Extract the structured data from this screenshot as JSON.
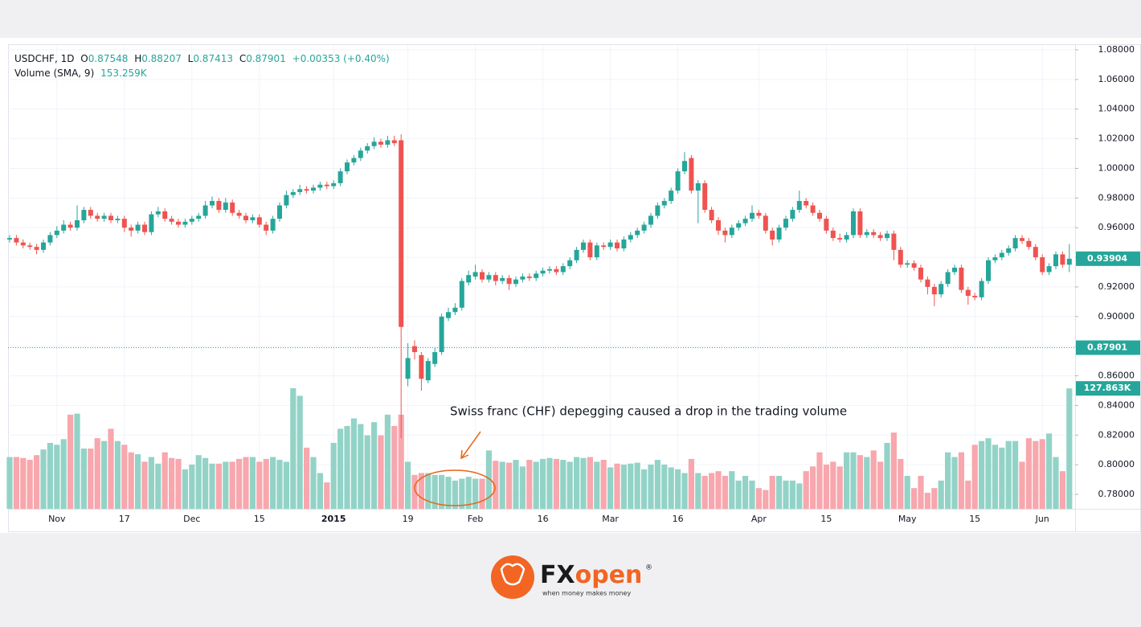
{
  "chart_data": {
    "type": "candlestick",
    "header": {
      "symbol": "USDCHF, 1D",
      "open": {
        "label": "O",
        "value": "0.87548"
      },
      "high": {
        "label": "H",
        "value": "0.88207"
      },
      "low": {
        "label": "L",
        "value": "0.87413"
      },
      "close": {
        "label": "C",
        "value": "0.87901"
      },
      "change": "+0.00353 (+0.40%)",
      "volume_indicator": "Volume (SMA, 9)",
      "volume_value": "153.259K"
    },
    "annotation": "Swiss franc (CHF) depegging caused a drop in the trading volume",
    "logo": {
      "name_dark": "FX",
      "name_accent": "open",
      "registered": "®",
      "tagline": "when money makes money"
    },
    "up_color": "#26a69a",
    "down_color": "#ef5350",
    "volume_up_color": "#93d3c7",
    "volume_down_color": "#f7a7ad",
    "annotation_color": "#e8661a",
    "ylim": [
      0.78,
      1.08
    ],
    "yticks": [
      {
        "value": 1.08,
        "label": "1.08000"
      },
      {
        "value": 1.06,
        "label": "1.06000"
      },
      {
        "value": 1.04,
        "label": "1.04000"
      },
      {
        "value": 1.02,
        "label": "1.02000"
      },
      {
        "value": 1.0,
        "label": "1.00000"
      },
      {
        "value": 0.98,
        "label": "0.98000"
      },
      {
        "value": 0.96,
        "label": "0.96000"
      },
      {
        "value": 0.94,
        "label": "0.94000"
      },
      {
        "value": 0.92,
        "label": "0.92000"
      },
      {
        "value": 0.9,
        "label": "0.90000"
      },
      {
        "value": 0.88,
        "label": "0.88000"
      },
      {
        "value": 0.86,
        "label": "0.86000"
      },
      {
        "value": 0.84,
        "label": "0.84000"
      },
      {
        "value": 0.82,
        "label": "0.82000"
      },
      {
        "value": 0.8,
        "label": "0.80000"
      },
      {
        "value": 0.78,
        "label": "0.78000"
      }
    ],
    "grid": true,
    "crosshair_price": 0.93904,
    "last_price": 0.87901,
    "volume_label": "127.863K",
    "categories": [
      null,
      null,
      null,
      null,
      null,
      null,
      null,
      "Nov",
      null,
      null,
      null,
      null,
      null,
      null,
      null,
      null,
      null,
      "17",
      null,
      null,
      null,
      null,
      null,
      null,
      null,
      null,
      null,
      "Dec",
      null,
      null,
      null,
      null,
      null,
      null,
      null,
      null,
      null,
      "15",
      null,
      null,
      null,
      null,
      null,
      null,
      null,
      null,
      null,
      null,
      "2015",
      null,
      null,
      null,
      null,
      null,
      null,
      null,
      null,
      null,
      null,
      "19",
      null,
      null,
      null,
      null,
      null,
      null,
      null,
      null,
      null,
      "Feb",
      null,
      null,
      null,
      null,
      null,
      null,
      null,
      null,
      null,
      "16",
      null,
      null,
      null,
      null,
      null,
      null,
      null,
      null,
      null,
      "Mar",
      null,
      null,
      null,
      null,
      null,
      null,
      null,
      null,
      null,
      "16",
      null,
      null,
      null,
      null,
      null,
      null,
      null,
      null,
      null,
      null,
      null,
      "Apr",
      null,
      null,
      null,
      null,
      null,
      null,
      null,
      null,
      null,
      "15",
      null,
      null,
      null,
      null,
      null,
      null,
      null,
      null,
      null,
      null,
      null,
      "May",
      null,
      null,
      null,
      null,
      null,
      null,
      null,
      null,
      null,
      "15",
      null,
      null,
      null,
      null,
      null,
      null,
      null,
      null,
      null,
      "Jun",
      null,
      null,
      null,
      null
    ],
    "ohlc": [
      [
        0.952,
        0.955,
        0.95,
        0.953
      ],
      [
        0.953,
        0.955,
        0.948,
        0.95
      ],
      [
        0.95,
        0.952,
        0.946,
        0.948
      ],
      [
        0.948,
        0.95,
        0.945,
        0.947
      ],
      [
        0.947,
        0.949,
        0.942,
        0.945
      ],
      [
        0.945,
        0.952,
        0.943,
        0.95
      ],
      [
        0.95,
        0.957,
        0.948,
        0.955
      ],
      [
        0.955,
        0.961,
        0.953,
        0.958
      ],
      [
        0.958,
        0.965,
        0.956,
        0.962
      ],
      [
        0.962,
        0.964,
        0.958,
        0.96
      ],
      [
        0.96,
        0.975,
        0.958,
        0.965
      ],
      [
        0.965,
        0.974,
        0.963,
        0.972
      ],
      [
        0.972,
        0.974,
        0.966,
        0.968
      ],
      [
        0.968,
        0.97,
        0.964,
        0.966
      ],
      [
        0.966,
        0.97,
        0.964,
        0.968
      ],
      [
        0.968,
        0.97,
        0.963,
        0.965
      ],
      [
        0.965,
        0.968,
        0.963,
        0.966
      ],
      [
        0.966,
        0.968,
        0.957,
        0.96
      ],
      [
        0.96,
        0.962,
        0.954,
        0.958
      ],
      [
        0.958,
        0.964,
        0.956,
        0.962
      ],
      [
        0.962,
        0.964,
        0.955,
        0.957
      ],
      [
        0.957,
        0.971,
        0.955,
        0.969
      ],
      [
        0.969,
        0.974,
        0.967,
        0.971
      ],
      [
        0.971,
        0.973,
        0.964,
        0.966
      ],
      [
        0.966,
        0.968,
        0.962,
        0.964
      ],
      [
        0.964,
        0.966,
        0.96,
        0.962
      ],
      [
        0.962,
        0.966,
        0.96,
        0.964
      ],
      [
        0.964,
        0.968,
        0.962,
        0.966
      ],
      [
        0.966,
        0.97,
        0.964,
        0.968
      ],
      [
        0.968,
        0.978,
        0.966,
        0.975
      ],
      [
        0.975,
        0.981,
        0.973,
        0.978
      ],
      [
        0.978,
        0.98,
        0.97,
        0.972
      ],
      [
        0.972,
        0.98,
        0.97,
        0.977
      ],
      [
        0.977,
        0.979,
        0.968,
        0.97
      ],
      [
        0.97,
        0.972,
        0.966,
        0.968
      ],
      [
        0.968,
        0.97,
        0.963,
        0.965
      ],
      [
        0.965,
        0.969,
        0.963,
        0.967
      ],
      [
        0.967,
        0.969,
        0.96,
        0.962
      ],
      [
        0.962,
        0.964,
        0.955,
        0.958
      ],
      [
        0.958,
        0.968,
        0.956,
        0.966
      ],
      [
        0.966,
        0.977,
        0.964,
        0.975
      ],
      [
        0.975,
        0.985,
        0.973,
        0.982
      ],
      [
        0.982,
        0.986,
        0.98,
        0.984
      ],
      [
        0.984,
        0.989,
        0.982,
        0.986
      ],
      [
        0.986,
        0.988,
        0.983,
        0.985
      ],
      [
        0.985,
        0.989,
        0.983,
        0.987
      ],
      [
        0.987,
        0.991,
        0.985,
        0.989
      ],
      [
        0.989,
        0.991,
        0.986,
        0.988
      ],
      [
        0.988,
        0.992,
        0.986,
        0.99
      ],
      [
        0.99,
        1.0,
        0.988,
        0.998
      ],
      [
        0.998,
        1.006,
        0.996,
        1.004
      ],
      [
        1.004,
        1.009,
        1.002,
        1.007
      ],
      [
        1.007,
        1.014,
        1.005,
        1.012
      ],
      [
        1.012,
        1.017,
        1.01,
        1.015
      ],
      [
        1.015,
        1.021,
        1.013,
        1.018
      ],
      [
        1.018,
        1.02,
        1.014,
        1.016
      ],
      [
        1.016,
        1.022,
        1.014,
        1.019
      ],
      [
        1.019,
        1.022,
        1.015,
        1.017
      ],
      [
        1.019,
        1.023,
        0.818,
        0.893
      ],
      [
        0.858,
        0.882,
        0.853,
        0.872
      ],
      [
        0.88,
        0.884,
        0.871,
        0.876
      ],
      [
        0.874,
        0.876,
        0.85,
        0.858
      ],
      [
        0.857,
        0.872,
        0.855,
        0.87
      ],
      [
        0.868,
        0.879,
        0.866,
        0.876
      ],
      [
        0.876,
        0.902,
        0.874,
        0.9
      ],
      [
        0.899,
        0.906,
        0.897,
        0.903
      ],
      [
        0.903,
        0.909,
        0.901,
        0.906
      ],
      [
        0.906,
        0.926,
        0.904,
        0.924
      ],
      [
        0.923,
        0.931,
        0.921,
        0.928
      ],
      [
        0.927,
        0.935,
        0.925,
        0.93
      ],
      [
        0.93,
        0.932,
        0.923,
        0.925
      ],
      [
        0.925,
        0.93,
        0.923,
        0.928
      ],
      [
        0.928,
        0.93,
        0.921,
        0.924
      ],
      [
        0.924,
        0.928,
        0.922,
        0.926
      ],
      [
        0.926,
        0.928,
        0.918,
        0.922
      ],
      [
        0.922,
        0.927,
        0.92,
        0.925
      ],
      [
        0.925,
        0.929,
        0.923,
        0.927
      ],
      [
        0.927,
        0.929,
        0.924,
        0.926
      ],
      [
        0.926,
        0.931,
        0.924,
        0.929
      ],
      [
        0.929,
        0.933,
        0.927,
        0.931
      ],
      [
        0.931,
        0.934,
        0.929,
        0.932
      ],
      [
        0.932,
        0.934,
        0.928,
        0.93
      ],
      [
        0.93,
        0.936,
        0.928,
        0.934
      ],
      [
        0.934,
        0.94,
        0.932,
        0.938
      ],
      [
        0.938,
        0.947,
        0.936,
        0.945
      ],
      [
        0.945,
        0.952,
        0.943,
        0.95
      ],
      [
        0.95,
        0.952,
        0.938,
        0.94
      ],
      [
        0.94,
        0.95,
        0.938,
        0.948
      ],
      [
        0.948,
        0.95,
        0.945,
        0.947
      ],
      [
        0.947,
        0.952,
        0.945,
        0.95
      ],
      [
        0.95,
        0.952,
        0.944,
        0.946
      ],
      [
        0.946,
        0.954,
        0.944,
        0.952
      ],
      [
        0.952,
        0.957,
        0.95,
        0.955
      ],
      [
        0.955,
        0.96,
        0.953,
        0.958
      ],
      [
        0.958,
        0.964,
        0.956,
        0.962
      ],
      [
        0.962,
        0.97,
        0.96,
        0.968
      ],
      [
        0.968,
        0.977,
        0.966,
        0.975
      ],
      [
        0.975,
        0.98,
        0.973,
        0.978
      ],
      [
        0.978,
        0.987,
        0.976,
        0.985
      ],
      [
        0.985,
        1.0,
        0.983,
        0.998
      ],
      [
        0.998,
        1.011,
        0.996,
        1.005
      ],
      [
        1.007,
        1.009,
        0.983,
        0.985
      ],
      [
        0.985,
        0.992,
        0.963,
        0.99
      ],
      [
        0.99,
        0.992,
        0.97,
        0.972
      ],
      [
        0.972,
        0.974,
        0.963,
        0.965
      ],
      [
        0.965,
        0.967,
        0.955,
        0.958
      ],
      [
        0.958,
        0.96,
        0.95,
        0.955
      ],
      [
        0.955,
        0.962,
        0.953,
        0.96
      ],
      [
        0.96,
        0.965,
        0.958,
        0.963
      ],
      [
        0.963,
        0.968,
        0.961,
        0.966
      ],
      [
        0.966,
        0.975,
        0.964,
        0.97
      ],
      [
        0.97,
        0.972,
        0.966,
        0.968
      ],
      [
        0.968,
        0.97,
        0.956,
        0.958
      ],
      [
        0.958,
        0.96,
        0.948,
        0.952
      ],
      [
        0.952,
        0.962,
        0.95,
        0.96
      ],
      [
        0.96,
        0.968,
        0.958,
        0.966
      ],
      [
        0.966,
        0.974,
        0.964,
        0.972
      ],
      [
        0.972,
        0.985,
        0.97,
        0.978
      ],
      [
        0.978,
        0.98,
        0.973,
        0.975
      ],
      [
        0.975,
        0.977,
        0.968,
        0.97
      ],
      [
        0.97,
        0.972,
        0.964,
        0.966
      ],
      [
        0.966,
        0.968,
        0.956,
        0.958
      ],
      [
        0.958,
        0.96,
        0.951,
        0.953
      ],
      [
        0.953,
        0.956,
        0.95,
        0.952
      ],
      [
        0.952,
        0.957,
        0.95,
        0.955
      ],
      [
        0.955,
        0.973,
        0.953,
        0.971
      ],
      [
        0.971,
        0.973,
        0.953,
        0.955
      ],
      [
        0.955,
        0.959,
        0.953,
        0.957
      ],
      [
        0.957,
        0.959,
        0.953,
        0.955
      ],
      [
        0.955,
        0.957,
        0.951,
        0.953
      ],
      [
        0.953,
        0.958,
        0.951,
        0.956
      ],
      [
        0.956,
        0.958,
        0.938,
        0.945
      ],
      [
        0.945,
        0.947,
        0.933,
        0.935
      ],
      [
        0.935,
        0.938,
        0.933,
        0.936
      ],
      [
        0.936,
        0.938,
        0.931,
        0.933
      ],
      [
        0.933,
        0.935,
        0.923,
        0.925
      ],
      [
        0.925,
        0.927,
        0.915,
        0.92
      ],
      [
        0.92,
        0.922,
        0.907,
        0.915
      ],
      [
        0.915,
        0.924,
        0.913,
        0.922
      ],
      [
        0.922,
        0.932,
        0.92,
        0.93
      ],
      [
        0.93,
        0.935,
        0.928,
        0.933
      ],
      [
        0.933,
        0.935,
        0.916,
        0.918
      ],
      [
        0.918,
        0.92,
        0.908,
        0.914
      ],
      [
        0.914,
        0.916,
        0.911,
        0.913
      ],
      [
        0.913,
        0.926,
        0.911,
        0.924
      ],
      [
        0.924,
        0.94,
        0.922,
        0.938
      ],
      [
        0.938,
        0.942,
        0.936,
        0.94
      ],
      [
        0.94,
        0.945,
        0.938,
        0.943
      ],
      [
        0.943,
        0.948,
        0.941,
        0.946
      ],
      [
        0.946,
        0.955,
        0.944,
        0.953
      ],
      [
        0.953,
        0.955,
        0.949,
        0.951
      ],
      [
        0.951,
        0.953,
        0.945,
        0.947
      ],
      [
        0.947,
        0.949,
        0.938,
        0.94
      ],
      [
        0.94,
        0.942,
        0.928,
        0.93
      ],
      [
        0.93,
        0.936,
        0.928,
        0.934
      ],
      [
        0.934,
        0.944,
        0.932,
        0.942
      ],
      [
        0.942,
        0.944,
        0.933,
        0.935
      ],
      [
        0.935,
        0.949,
        0.93,
        0.939
      ]
    ],
    "volumes": [
      55,
      55,
      54,
      52,
      57,
      63,
      70,
      68,
      74,
      100,
      101,
      64,
      64,
      75,
      72,
      85,
      72,
      68,
      60,
      58,
      50,
      55,
      48,
      60,
      54,
      53,
      42,
      47,
      57,
      54,
      48,
      48,
      50,
      50,
      53,
      55,
      55,
      50,
      53,
      55,
      52,
      50,
      128,
      120,
      65,
      55,
      38,
      28,
      70,
      85,
      88,
      96,
      90,
      78,
      92,
      78,
      100,
      88,
      100,
      50,
      36,
      38,
      38,
      36,
      36,
      34,
      30,
      32,
      34,
      32,
      32,
      62,
      51,
      50,
      49,
      52,
      45,
      52,
      50,
      53,
      54,
      53,
      52,
      50,
      55,
      54,
      55,
      50,
      52,
      44,
      48,
      47,
      48,
      49,
      42,
      47,
      52,
      47,
      44,
      42,
      38,
      53,
      38,
      35,
      38,
      40,
      35,
      40,
      30,
      35,
      30,
      22,
      20,
      35,
      35,
      30,
      30,
      27,
      40,
      45,
      60,
      47,
      50,
      45,
      60,
      60,
      57,
      55,
      62,
      50,
      70,
      81,
      53,
      35,
      22,
      35,
      17,
      22,
      30,
      60,
      55,
      60,
      30,
      68,
      72,
      75,
      68,
      65,
      72,
      72,
      50,
      75,
      72,
      74,
      80,
      55,
      40,
      127.863
    ]
  }
}
